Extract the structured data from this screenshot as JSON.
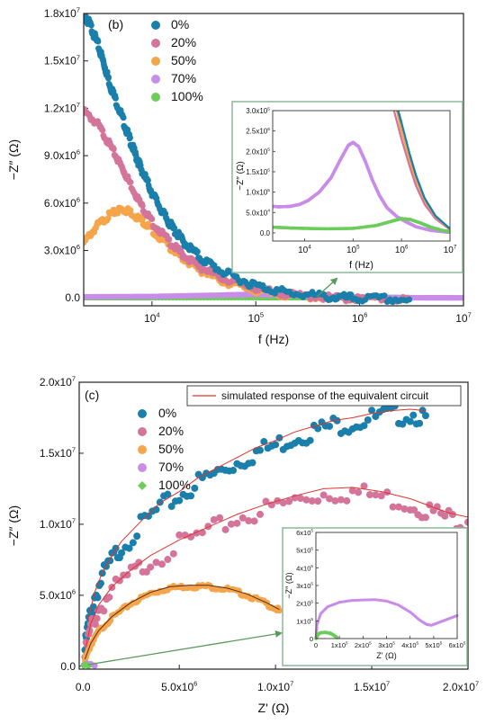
{
  "colors": {
    "s0": "#1a7faa",
    "s20": "#d4749a",
    "s50": "#f5a54a",
    "s70": "#c88de8",
    "s100": "#6dcc5a",
    "fit": "#e0332e",
    "inset_border": "#8ab89a",
    "arrow": "#5a9a5a"
  },
  "chart_data": [
    {
      "id": "b",
      "type": "scatter",
      "panel_label": "(b)",
      "xlabel": "f (Hz)",
      "ylabel": "−Z″ (Ω)",
      "xscale": "log",
      "xlim": [
        2200,
        10000000
      ],
      "ylim": [
        -500000,
        18000000
      ],
      "xticks": [
        {
          "v": 10000,
          "b": "10",
          "e": "4"
        },
        {
          "v": 100000,
          "b": "10",
          "e": "5"
        },
        {
          "v": 1000000,
          "b": "10",
          "e": "6"
        },
        {
          "v": 10000000,
          "b": "10",
          "e": "7"
        }
      ],
      "yticks": [
        {
          "v": 0,
          "b": "0.0",
          "e": ""
        },
        {
          "v": 3000000,
          "b": "3.0x10",
          "e": "6"
        },
        {
          "v": 6000000,
          "b": "6.0x10",
          "e": "6"
        },
        {
          "v": 9000000,
          "b": "9.0x10",
          "e": "6"
        },
        {
          "v": 12000000,
          "b": "1.2x10",
          "e": "7"
        },
        {
          "v": 15000000,
          "b": "1.5x10",
          "e": "7"
        },
        {
          "v": 18000000,
          "b": "1.8x10",
          "e": "7"
        }
      ],
      "legend": "upper-left",
      "series": [
        {
          "name": "0%",
          "color_key": "s0",
          "x": [
            2200,
            2500,
            3000,
            3500,
            4000,
            5000,
            6000,
            7000,
            8000,
            10000,
            13000,
            16000,
            20000,
            30000,
            50000,
            100000,
            200000,
            500000,
            1000000,
            3000000
          ],
          "y": [
            18000000,
            17500000,
            16200000,
            14800000,
            13500000,
            11800000,
            10300000,
            9100000,
            8200000,
            6800000,
            5400000,
            4500000,
            3700000,
            2600000,
            1700000,
            900000,
            450000,
            180000,
            80000,
            20000
          ]
        },
        {
          "name": "20%",
          "color_key": "s20",
          "x": [
            2200,
            3000,
            4000,
            5000,
            6000,
            8000,
            10000,
            15000,
            20000,
            30000,
            50000,
            100000,
            200000,
            500000,
            1000000,
            3000000
          ],
          "y": [
            11900000,
            11100000,
            9700000,
            8500000,
            7500000,
            5900000,
            4900000,
            3600000,
            2800000,
            2000000,
            1300000,
            700000,
            320000,
            120000,
            50000,
            15000
          ]
        },
        {
          "name": "50%",
          "color_key": "s50",
          "x": [
            2200,
            3000,
            4000,
            5000,
            6000,
            8000,
            10000,
            15000,
            20000,
            30000,
            50000,
            100000,
            200000,
            500000,
            1000000,
            3000000
          ],
          "y": [
            3600000,
            4700000,
            5400000,
            5700000,
            5600000,
            5000000,
            4400000,
            3300000,
            2600000,
            1800000,
            1100000,
            550000,
            250000,
            90000,
            40000,
            10000
          ]
        },
        {
          "name": "70%",
          "color_key": "s70",
          "x": [
            2200,
            10000,
            50000,
            100000,
            200000,
            500000,
            1000000,
            3000000,
            10000000
          ],
          "y": [
            65000,
            90000,
            180000,
            220000,
            180000,
            80000,
            40000,
            12000,
            3000
          ]
        },
        {
          "name": "100%",
          "color_key": "s100",
          "x": [
            2200,
            10000,
            100000,
            300000,
            1000000,
            3000000
          ],
          "y": [
            15000,
            12000,
            15000,
            25000,
            35000,
            15000
          ]
        }
      ],
      "inset": {
        "xlabel": "f (Hz)",
        "ylabel": "−Z″ (Ω)",
        "xlim": [
          2200,
          10000000
        ],
        "ylim": [
          -20000,
          300000
        ],
        "xticks": [
          {
            "v": 10000,
            "b": "10",
            "e": "4"
          },
          {
            "v": 100000,
            "b": "10",
            "e": "5"
          },
          {
            "v": 1000000,
            "b": "10",
            "e": "6"
          },
          {
            "v": 10000000,
            "b": "10",
            "e": "7"
          }
        ],
        "yticks": [
          {
            "v": 0,
            "b": "0.0",
            "e": ""
          },
          {
            "v": 50000,
            "b": "5.0x10",
            "e": "4"
          },
          {
            "v": 100000,
            "b": "1.0x10",
            "e": "5"
          },
          {
            "v": 150000,
            "b": "1.5x10",
            "e": "5"
          },
          {
            "v": 200000,
            "b": "2.0x10",
            "e": "5"
          },
          {
            "v": 250000,
            "b": "2.5x10",
            "e": "5"
          },
          {
            "v": 300000,
            "b": "3.0x10",
            "e": "5"
          }
        ],
        "series": [
          {
            "color_key": "s70",
            "x": [
              2200,
              3000,
              5000,
              8000,
              12000,
              20000,
              35000,
              55000,
              80000,
              100000,
              130000,
              180000,
              250000,
              350000,
              500000,
              800000,
              1200000,
              2000000,
              4000000,
              10000000
            ],
            "y": [
              65000,
              64000,
              65000,
              70000,
              80000,
              100000,
              135000,
              180000,
              215000,
              222000,
              212000,
              175000,
              130000,
              92000,
              62000,
              40000,
              28000,
              15000,
              6000,
              1000
            ]
          },
          {
            "color_key": "s100",
            "x": [
              2200,
              5000,
              10000,
              30000,
              100000,
              300000,
              600000,
              1000000,
              1500000,
              2500000,
              4000000,
              7000000,
              10000000
            ],
            "y": [
              14000,
              12000,
              11000,
              10000,
              11000,
              18000,
              28000,
              35000,
              33000,
              24000,
              14000,
              6000,
              3000
            ]
          },
          {
            "color_key": "s20",
            "x": [
              700000,
              1000000,
              1500000,
              2000000,
              3000000,
              5000000,
              10000000
            ],
            "y": [
              300000,
              230000,
              160000,
              115000,
              70000,
              35000,
              8000
            ]
          },
          {
            "color_key": "s50",
            "x": [
              800000,
              1000000,
              1500000,
              2000000,
              3000000,
              5000000,
              10000000
            ],
            "y": [
              300000,
              250000,
              175000,
              130000,
              80000,
              40000,
              9000
            ]
          },
          {
            "color_key": "s0",
            "x": [
              850000,
              1000000,
              1500000,
              2000000,
              3000000,
              5000000,
              10000000
            ],
            "y": [
              300000,
              270000,
              190000,
              140000,
              85000,
              42000,
              10000
            ]
          }
        ]
      }
    },
    {
      "id": "c",
      "type": "scatter",
      "panel_label": "(c)",
      "xlabel": "Z' (Ω)",
      "ylabel": "−Z″ (Ω)",
      "xscale": "linear",
      "xlim": [
        -200000,
        20000000
      ],
      "ylim": [
        -200000,
        20000000
      ],
      "xticks": [
        {
          "v": 0,
          "b": "0.0",
          "e": ""
        },
        {
          "v": 5000000,
          "b": "5.0x10",
          "e": "6"
        },
        {
          "v": 10000000,
          "b": "1.0x10",
          "e": "7"
        },
        {
          "v": 15000000,
          "b": "1.5x10",
          "e": "7"
        },
        {
          "v": 20000000,
          "b": "2.0x10",
          "e": "7"
        }
      ],
      "yticks": [
        {
          "v": 0,
          "b": "0.0",
          "e": ""
        },
        {
          "v": 5000000,
          "b": "5.0x10",
          "e": "6"
        },
        {
          "v": 10000000,
          "b": "1.0x10",
          "e": "7"
        },
        {
          "v": 15000000,
          "b": "1.5x10",
          "e": "7"
        },
        {
          "v": 20000000,
          "b": "2.0x10",
          "e": "7"
        }
      ],
      "legend": "upper-left",
      "fit_legend": "simulated response of the equivalent circuit",
      "series": [
        {
          "name": "0%",
          "color_key": "s0",
          "x": [
            100000,
            300000,
            600000,
            1000000,
            1500000,
            2000000,
            3000000,
            4000000,
            5000000,
            6000000,
            7000000,
            8000000,
            9000000,
            10000000,
            11000000,
            12000000,
            13000000,
            14000000,
            15000000,
            16000000,
            17000000,
            17800000
          ],
          "y": [
            1500000,
            3500000,
            5200000,
            6600000,
            7800000,
            8800000,
            10200000,
            11500000,
            12300000,
            13300000,
            14000000,
            14700000,
            15400000,
            15900000,
            16500000,
            16900000,
            17300000,
            17500000,
            17800000,
            18000000,
            18100000,
            18000000
          ]
        },
        {
          "name": "20%",
          "color_key": "s20",
          "x": [
            100000,
            400000,
            800000,
            1500000,
            2500000,
            3500000,
            5000000,
            6500000,
            8000000,
            9500000,
            11000000,
            12500000,
            14000000,
            15500000,
            17000000,
            18000000,
            19000000,
            20000000
          ],
          "y": [
            1000000,
            3000000,
            4300000,
            5600000,
            6800000,
            7800000,
            8900000,
            9800000,
            10700000,
            11400000,
            12000000,
            12500000,
            12600000,
            12300000,
            11800000,
            11300000,
            10800000,
            10500000
          ]
        },
        {
          "name": "50%",
          "color_key": "s50",
          "x": [
            100000,
            400000,
            800000,
            1500000,
            2500000,
            3500000,
            4500000,
            5500000,
            6500000,
            7500000,
            8500000,
            9500000,
            10200000
          ],
          "y": [
            500000,
            1600000,
            2500000,
            3500000,
            4500000,
            5200000,
            5600000,
            5700000,
            5700000,
            5500000,
            5100000,
            4500000,
            4000000
          ]
        },
        {
          "name": "70%",
          "color_key": "s70",
          "x": [
            50000,
            200000,
            400000,
            600000
          ],
          "y": [
            100000,
            200000,
            150000,
            50000
          ]
        },
        {
          "name": "100%",
          "color_key": "s100",
          "x": [
            30000,
            100000,
            200000,
            300000
          ],
          "y": [
            50000,
            120000,
            80000,
            20000
          ]
        }
      ],
      "inset": {
        "xlabel": "Z' (Ω)",
        "ylabel": "−Z″ (Ω)",
        "xlim": [
          0,
          600000
        ],
        "ylim": [
          0,
          600000
        ],
        "xticks": [
          {
            "v": 0,
            "b": "0",
            "e": ""
          },
          {
            "v": 100000,
            "b": "1x10",
            "e": "5"
          },
          {
            "v": 200000,
            "b": "2x10",
            "e": "5"
          },
          {
            "v": 300000,
            "b": "3x10",
            "e": "5"
          },
          {
            "v": 400000,
            "b": "4x10",
            "e": "5"
          },
          {
            "v": 500000,
            "b": "5x10",
            "e": "5"
          },
          {
            "v": 600000,
            "b": "6x10",
            "e": "5"
          }
        ],
        "yticks": [
          {
            "v": 0,
            "b": "0",
            "e": ""
          },
          {
            "v": 100000,
            "b": "1x10",
            "e": "5"
          },
          {
            "v": 200000,
            "b": "2x10",
            "e": "5"
          },
          {
            "v": 300000,
            "b": "3x10",
            "e": "5"
          },
          {
            "v": 400000,
            "b": "4x10",
            "e": "5"
          },
          {
            "v": 500000,
            "b": "5x10",
            "e": "5"
          },
          {
            "v": 600000,
            "b": "6x10",
            "e": "5"
          }
        ],
        "series": [
          {
            "color_key": "s70",
            "x": [
              0,
              5000,
              20000,
              50000,
              100000,
              150000,
              200000,
              250000,
              300000,
              350000,
              400000,
              440000,
              470000,
              490000,
              510000,
              540000,
              570000,
              600000
            ],
            "y": [
              0,
              80000,
              140000,
              180000,
              205000,
              215000,
              218000,
              220000,
              212000,
              190000,
              150000,
              105000,
              80000,
              75000,
              85000,
              100000,
              115000,
              130000
            ]
          },
          {
            "color_key": "s100",
            "x": [
              0,
              10000,
              20000,
              40000,
              60000,
              70000,
              80000,
              90000
            ],
            "y": [
              0,
              25000,
              33000,
              35000,
              30000,
              24000,
              15000,
              5000
            ]
          }
        ]
      }
    }
  ]
}
